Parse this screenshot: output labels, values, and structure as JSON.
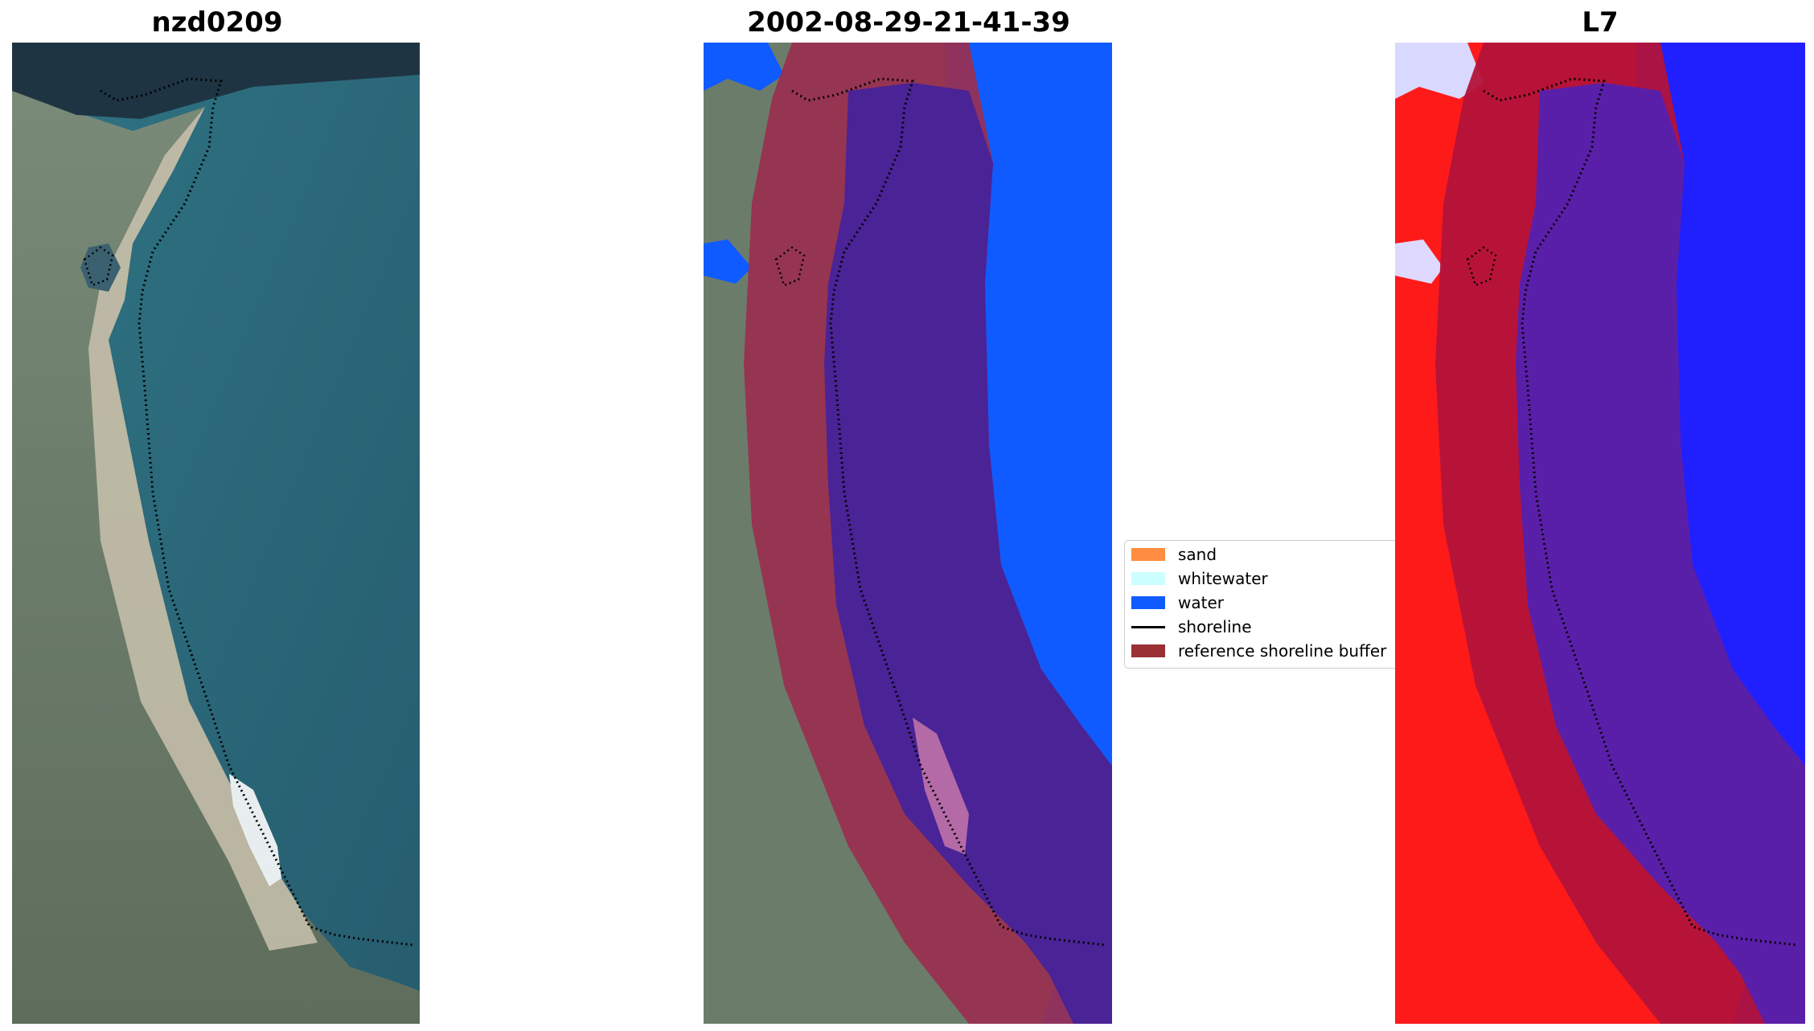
{
  "panels": [
    {
      "title": "nzd0209"
    },
    {
      "title": "2002-08-29-21-41-39"
    },
    {
      "title": "L7"
    }
  ],
  "legend": {
    "items": [
      {
        "label": "sand",
        "kind": "patch",
        "color": "#ff8c40"
      },
      {
        "label": "whitewater",
        "kind": "patch",
        "color": "#ccffff"
      },
      {
        "label": "water",
        "kind": "patch",
        "color": "#0f5bff"
      },
      {
        "label": "shoreline",
        "kind": "line",
        "color": "#000000"
      },
      {
        "label": "reference shoreline buffer",
        "kind": "patch",
        "color": "#9a2f36"
      }
    ]
  },
  "colors": {
    "background": "#ffffff",
    "sea": "#2d6e80",
    "land": "#6f806f",
    "beach": "#c7c0ad",
    "water_class": "#0f5bff",
    "buffer": "#9a2f4f",
    "buffer_over_water": "#4a2396",
    "index_land": "#ff1a1a",
    "index_water": "#1a1aff",
    "shoreline": "#000000"
  },
  "icons": {
    "shoreline": "dotted-line"
  }
}
